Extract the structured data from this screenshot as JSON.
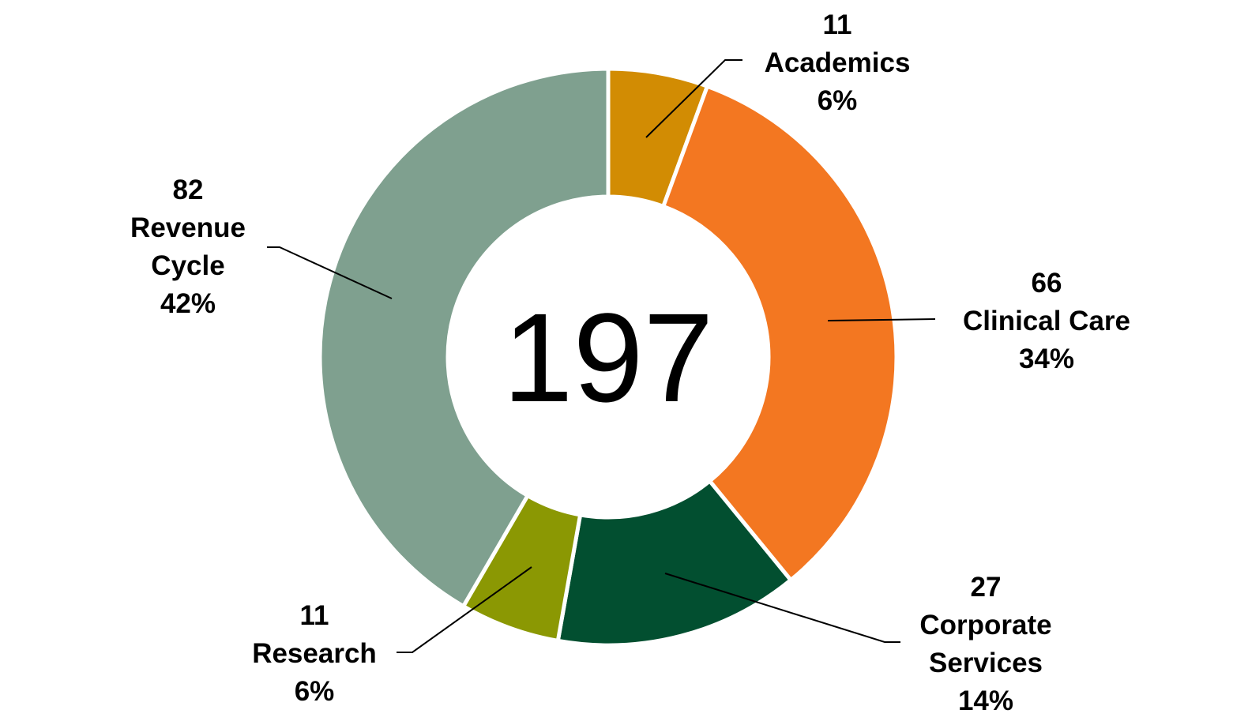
{
  "chart_data": {
    "type": "pie",
    "variant": "donut",
    "center_text": "197",
    "slices": [
      {
        "label": "Academics",
        "value": 11,
        "percent": "6%",
        "color": "#D28C03"
      },
      {
        "label": "Clinical Care",
        "value": 66,
        "percent": "34%",
        "color": "#F37721"
      },
      {
        "label": "Corporate Services",
        "value": 27,
        "percent": "14%",
        "color": "#024F30"
      },
      {
        "label": "Research",
        "value": 11,
        "percent": "6%",
        "color": "#8B9803"
      },
      {
        "label": "Revenue Cycle",
        "value": 82,
        "percent": "42%",
        "color": "#7FA08F"
      }
    ],
    "labels": [
      {
        "lines": [
          "11",
          "Academics",
          "6%"
        ]
      },
      {
        "lines": [
          "66",
          "Clinical Care",
          "34%"
        ]
      },
      {
        "lines": [
          "27",
          "Corporate",
          "Services",
          "14%"
        ]
      },
      {
        "lines": [
          "11",
          "Research",
          "6%"
        ]
      },
      {
        "lines": [
          "82",
          "Revenue",
          "Cycle",
          "42%"
        ]
      }
    ],
    "legend": "none"
  }
}
